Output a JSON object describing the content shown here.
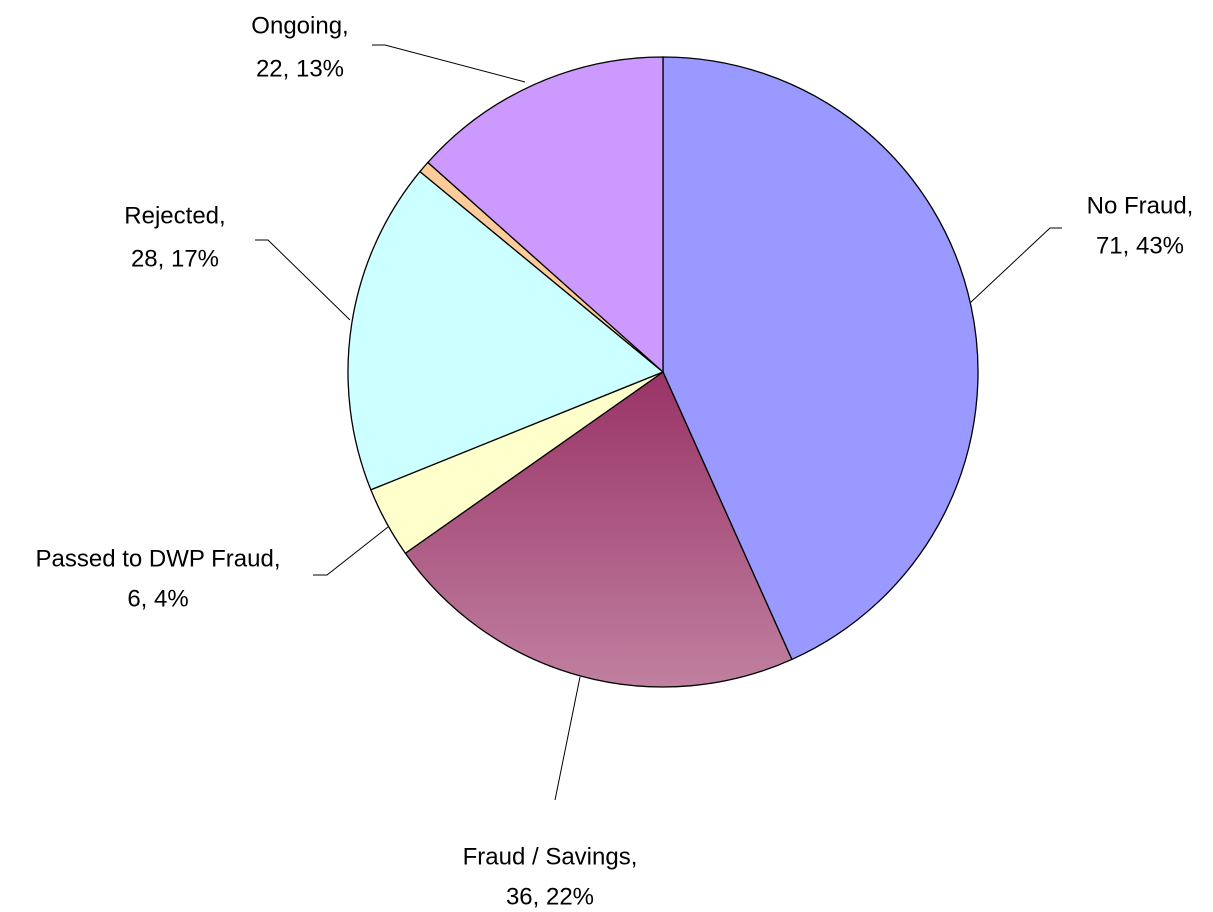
{
  "chart_data": {
    "type": "pie",
    "categories": [
      "No Fraud",
      "Fraud / Savings",
      "Passed to DWP Fraud",
      "Rejected",
      null,
      "Ongoing"
    ],
    "values": [
      71,
      36,
      6,
      28,
      1,
      22
    ],
    "data_labels": [
      [
        "No Fraud,",
        "71, 43%"
      ],
      [
        "Fraud / Savings,",
        "36, 22%"
      ],
      [
        "Passed to DWP Fraud,",
        "6, 4%"
      ],
      [
        "Rejected,",
        "28, 17%"
      ],
      null,
      [
        "Ongoing,",
        "22, 13%"
      ]
    ],
    "colors": [
      "#9999ff",
      "#993366",
      "#ffffcc",
      "#ccffff",
      "#ffcc99",
      "#cc99ff"
    ],
    "start_angle": 0,
    "direction": "clockwise"
  }
}
